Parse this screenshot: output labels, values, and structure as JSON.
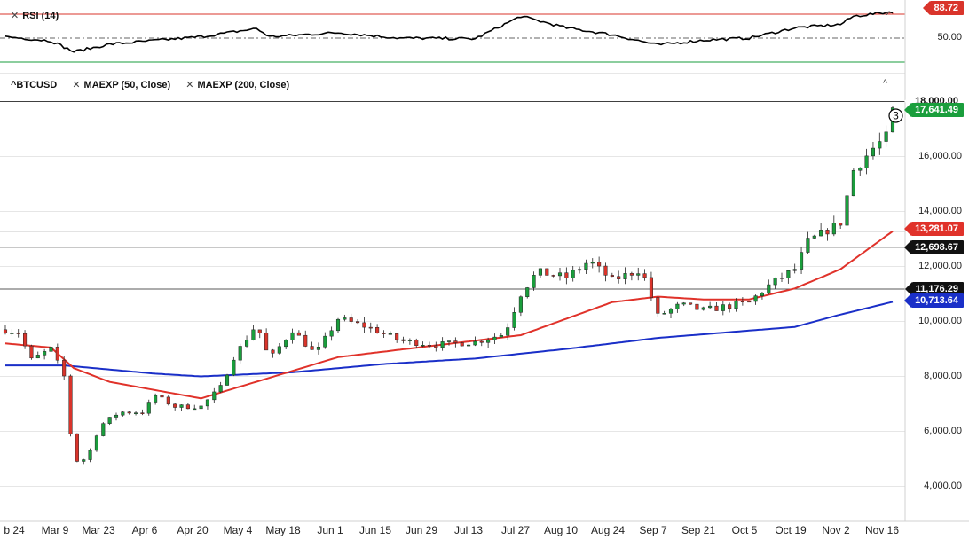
{
  "rsi_panel": {
    "label": "RSI (14)",
    "value_tag": "88.72",
    "mid_tick": "50.00"
  },
  "main_panel": {
    "symbol": "^BTCUSD",
    "study1": "MAEXP (50, Close)",
    "study2": "MAEXP (200, Close)",
    "marker": "3"
  },
  "colors": {
    "up": "#1a9e3c",
    "down": "#d9342b",
    "ma50": "#e0322a",
    "ma200": "#1a2fc8",
    "rsi": "#000000",
    "grid": "#e6e6e6"
  },
  "price_tags": [
    {
      "label": "18,000.00",
      "value": 18000,
      "style": "line"
    },
    {
      "label": "17,641.49",
      "value": 17641.49,
      "style": "green"
    },
    {
      "label": "13,281.07",
      "value": 13281.07,
      "style": "red"
    },
    {
      "label": "12,698.67",
      "value": 12698.67,
      "style": "black"
    },
    {
      "label": "11,176.29",
      "value": 11176.29,
      "style": "black"
    },
    {
      "label": "10,713.64",
      "value": 10713.64,
      "style": "blue"
    }
  ],
  "chart_data": {
    "type": "candlestick",
    "y_ticks": [
      "16,000.00",
      "14,000.00",
      "12,000.00",
      "10,000.00",
      "8,000.00",
      "6,000.00",
      "4,000.00"
    ],
    "y_tick_values": [
      16000,
      14000,
      12000,
      10000,
      8000,
      6000,
      4000
    ],
    "ylim": [
      3500,
      18400
    ],
    "x_labels": [
      "b 24",
      "Mar 9",
      "Mar 23",
      "Apr 6",
      "Apr 20",
      "May 4",
      "May 18",
      "Jun 1",
      "Jun 15",
      "Jun 29",
      "Jul 13",
      "Jul 27",
      "Aug 10",
      "Aug 24",
      "Sep 7",
      "Sep 21",
      "Oct 5",
      "Oct 19",
      "Nov 2",
      "Nov 16"
    ],
    "close_anchors": [
      [
        "Feb 20",
        9700
      ],
      [
        "Feb 24",
        9600
      ],
      [
        "Feb 28",
        8600
      ],
      [
        "Mar 5",
        9000
      ],
      [
        "Mar 9",
        8000
      ],
      [
        "Mar 12",
        4900
      ],
      [
        "Mar 16",
        5000
      ],
      [
        "Mar 20",
        6200
      ],
      [
        "Mar 26",
        6700
      ],
      [
        "Apr 2",
        6700
      ],
      [
        "Apr 6",
        7300
      ],
      [
        "Apr 12",
        6900
      ],
      [
        "Apr 20",
        6900
      ],
      [
        "Apr 26",
        7600
      ],
      [
        "Apr 30",
        8700
      ],
      [
        "May 7",
        9900
      ],
      [
        "May 11",
        8600
      ],
      [
        "May 18",
        9700
      ],
      [
        "May 25",
        8800
      ],
      [
        "Jun 1",
        10100
      ],
      [
        "Jun 10",
        9800
      ],
      [
        "Jun 20",
        9300
      ],
      [
        "Jul 1",
        9150
      ],
      [
        "Jul 13",
        9250
      ],
      [
        "Jul 22",
        9550
      ],
      [
        "Jul 27",
        11000
      ],
      [
        "Aug 1",
        11800
      ],
      [
        "Aug 10",
        11600
      ],
      [
        "Aug 17",
        12200
      ],
      [
        "Aug 24",
        11500
      ],
      [
        "Sep 2",
        11900
      ],
      [
        "Sep 7",
        10200
      ],
      [
        "Sep 14",
        10600
      ],
      [
        "Sep 21",
        10400
      ],
      [
        "Oct 5",
        10700
      ],
      [
        "Oct 12",
        11400
      ],
      [
        "Oct 19",
        11900
      ],
      [
        "Oct 23",
        12900
      ],
      [
        "Nov 2",
        13600
      ],
      [
        "Nov 6",
        15500
      ],
      [
        "Nov 12",
        16300
      ],
      [
        "Nov 16",
        16700
      ],
      [
        "Nov 18",
        17641.49
      ]
    ],
    "ma50_anchors": [
      [
        "Feb 20",
        9200
      ],
      [
        "Mar 5",
        9050
      ],
      [
        "Mar 12",
        8300
      ],
      [
        "Mar 23",
        7800
      ],
      [
        "Apr 20",
        7200
      ],
      [
        "May 4",
        7700
      ],
      [
        "May 18",
        8200
      ],
      [
        "Jun 1",
        8700
      ],
      [
        "Jun 29",
        9100
      ],
      [
        "Jul 27",
        9500
      ],
      [
        "Aug 10",
        10100
      ],
      [
        "Aug 24",
        10700
      ],
      [
        "Sep 7",
        10900
      ],
      [
        "Sep 21",
        10800
      ],
      [
        "Oct 5",
        10800
      ],
      [
        "Oct 19",
        11200
      ],
      [
        "Nov 2",
        11900
      ],
      [
        "Nov 18",
        13281.07
      ]
    ],
    "ma200_anchors": [
      [
        "Feb 20",
        8400
      ],
      [
        "Mar 9",
        8400
      ],
      [
        "Apr 6",
        8100
      ],
      [
        "Apr 20",
        8000
      ],
      [
        "May 18",
        8150
      ],
      [
        "Jun 15",
        8450
      ],
      [
        "Jul 13",
        8650
      ],
      [
        "Aug 10",
        9000
      ],
      [
        "Sep 7",
        9400
      ],
      [
        "Oct 19",
        9800
      ],
      [
        "Nov 2",
        10250
      ],
      [
        "Nov 18",
        10713.64
      ]
    ],
    "rsi_anchors": [
      [
        "Feb 20",
        52
      ],
      [
        "Mar 5",
        46
      ],
      [
        "Mar 12",
        30
      ],
      [
        "Mar 23",
        41
      ],
      [
        "Apr 20",
        52
      ],
      [
        "May 7",
        64
      ],
      [
        "May 11",
        52
      ],
      [
        "Jun 1",
        58
      ],
      [
        "Jun 20",
        50
      ],
      [
        "Jul 13",
        49
      ],
      [
        "Jul 27",
        82
      ],
      [
        "Aug 10",
        65
      ],
      [
        "Aug 24",
        55
      ],
      [
        "Sep 7",
        40
      ],
      [
        "Sep 21",
        47
      ],
      [
        "Oct 5",
        50
      ],
      [
        "Oct 19",
        65
      ],
      [
        "Nov 2",
        70
      ],
      [
        "Nov 6",
        82
      ],
      [
        "Nov 18",
        88.72
      ]
    ],
    "rsi_levels": {
      "upper": 85,
      "mid": 50,
      "lower": 15
    }
  }
}
